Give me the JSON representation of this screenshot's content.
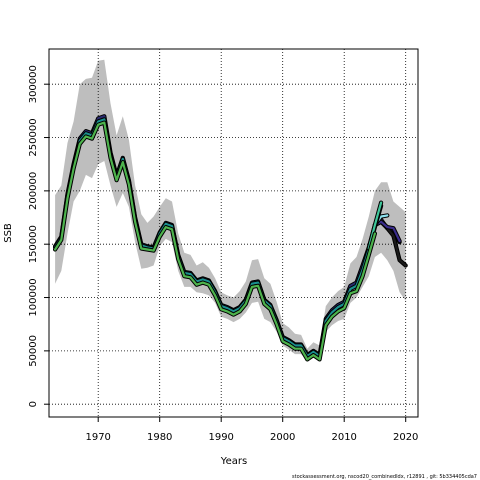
{
  "chart_data": {
    "type": "line",
    "title": "",
    "xlabel": "Years",
    "ylabel": "SSB",
    "xlim": [
      1962,
      2022
    ],
    "ylim": [
      -12000,
      333000
    ],
    "x_ticks": [
      1970,
      1980,
      1990,
      2000,
      2010,
      2020
    ],
    "y_ticks": [
      0,
      50000,
      100000,
      150000,
      200000,
      250000,
      300000
    ],
    "grid": true,
    "legend": "none",
    "colors": {
      "band": "#bebebe",
      "grid": "#000000",
      "outline": "#000000",
      "green": "#4db34d",
      "teal": "#1a8f8f",
      "darkblue": "#2a2a6e",
      "purple": "#3b2d8c",
      "black": "#1a1a1a",
      "cyan": "#8fe3f0",
      "mint": "#3fc69a"
    },
    "band": {
      "x": [
        1963,
        1964,
        1965,
        1966,
        1967,
        1968,
        1969,
        1970,
        1971,
        1972,
        1973,
        1974,
        1975,
        1976,
        1977,
        1978,
        1979,
        1980,
        1981,
        1982,
        1983,
        1984,
        1985,
        1986,
        1987,
        1988,
        1989,
        1990,
        1991,
        1992,
        1993,
        1994,
        1995,
        1996,
        1997,
        1998,
        1999,
        2000,
        2001,
        2002,
        2003,
        2004,
        2005,
        2006,
        2007,
        2008,
        2009,
        2010,
        2011,
        2012,
        2013,
        2014,
        2015,
        2016,
        2017,
        2018,
        2019,
        2020
      ],
      "upper": [
        196000,
        205000,
        245000,
        265000,
        300000,
        305000,
        306000,
        322000,
        323000,
        282000,
        252000,
        270000,
        248000,
        205000,
        178000,
        170000,
        176000,
        185000,
        193000,
        190000,
        160000,
        142000,
        140000,
        130000,
        133000,
        128000,
        118000,
        105000,
        102000,
        100000,
        106000,
        115000,
        135000,
        136000,
        118000,
        113000,
        96000,
        76000,
        72000,
        66000,
        65000,
        52000,
        58000,
        55000,
        92000,
        100000,
        106000,
        110000,
        132000,
        138000,
        155000,
        176000,
        200000,
        208000,
        208000,
        190000,
        185000,
        180000
      ],
      "lower": [
        113000,
        125000,
        160000,
        190000,
        200000,
        215000,
        212000,
        225000,
        228000,
        205000,
        185000,
        198000,
        185000,
        152000,
        127000,
        128000,
        130000,
        148000,
        155000,
        152000,
        125000,
        110000,
        110000,
        105000,
        104000,
        102000,
        95000,
        82000,
        80000,
        77000,
        80000,
        86000,
        95000,
        96000,
        80000,
        77000,
        68000,
        55000,
        51000,
        47000,
        47000,
        41000,
        46000,
        44000,
        68000,
        74000,
        78000,
        80000,
        95000,
        100000,
        110000,
        120000,
        138000,
        142000,
        135000,
        125000,
        105000,
        97000
      ]
    },
    "series": [
      {
        "color_key": "darkblue",
        "x": [
          1963,
          1964,
          1965,
          1966,
          1967,
          1968,
          1969,
          1970,
          1971,
          1972,
          1973,
          1974,
          1975,
          1976,
          1977,
          1978,
          1979,
          1980,
          1981,
          1982,
          1983,
          1984,
          1985,
          1986,
          1987,
          1988,
          1989,
          1990,
          1991,
          1992,
          1993,
          1994,
          1995,
          1996,
          1997,
          1998,
          1999,
          2000,
          2001,
          2002,
          2003,
          2004,
          2005,
          2006,
          2007,
          2008,
          2009,
          2010,
          2011,
          2012,
          2013,
          2014,
          2015,
          2016,
          2017,
          2018,
          2019
        ],
        "y": [
          148000,
          157000,
          197000,
          225000,
          249000,
          256000,
          254000,
          268000,
          270000,
          236000,
          214000,
          231000,
          210000,
          175000,
          150000,
          148000,
          147000,
          161000,
          170000,
          168000,
          140000,
          124000,
          123000,
          116000,
          118000,
          116000,
          106000,
          93000,
          91000,
          88000,
          91000,
          98000,
          114000,
          115000,
          98000,
          93000,
          79000,
          63000,
          60000,
          56000,
          56000,
          46000,
          50000,
          46000,
          80000,
          88000,
          93000,
          96000,
          111000,
          114000,
          130000,
          147000,
          168000,
          173000,
          165000,
          163000,
          152000
        ]
      },
      {
        "color_key": "black",
        "x": [
          2015,
          2016,
          2017,
          2018,
          2019,
          2020
        ],
        "y": [
          168000,
          171000,
          165000,
          158000,
          135000,
          130000
        ]
      },
      {
        "color_key": "purple",
        "x": [
          2015,
          2016,
          2017,
          2018,
          2019
        ],
        "y": [
          168000,
          171000,
          166000,
          165000,
          153000
        ]
      },
      {
        "color_key": "cyan",
        "x": [
          2015,
          2016,
          2017
        ],
        "y": [
          168000,
          176000,
          177000
        ]
      },
      {
        "color_key": "teal",
        "x": [
          1963,
          1964,
          1965,
          1966,
          1967,
          1968,
          1969,
          1970,
          1971,
          1972,
          1973,
          1974,
          1975,
          1976,
          1977,
          1978,
          1979,
          1980,
          1981,
          1982,
          1983,
          1984,
          1985,
          1986,
          1987,
          1988,
          1989,
          1990,
          1991,
          1992,
          1993,
          1994,
          1995,
          1996,
          1997,
          1998,
          1999,
          2000,
          2001,
          2002,
          2003,
          2004,
          2005,
          2006,
          2007,
          2008,
          2009,
          2010,
          2011,
          2012,
          2013,
          2014,
          2015,
          2016
        ],
        "y": [
          147000,
          156000,
          196000,
          223000,
          247000,
          254000,
          252000,
          265000,
          267000,
          234000,
          213000,
          230000,
          209000,
          174000,
          149000,
          147000,
          146000,
          160000,
          169000,
          167000,
          139000,
          123000,
          122000,
          115000,
          117000,
          115000,
          105000,
          92000,
          90000,
          87000,
          90000,
          97000,
          113000,
          114000,
          97000,
          92000,
          78000,
          62000,
          59000,
          55000,
          55000,
          45000,
          49000,
          45000,
          78000,
          86000,
          91000,
          94000,
          108000,
          111000,
          126000,
          145000,
          166000,
          186000
        ]
      },
      {
        "color_key": "mint",
        "x": [
          2014,
          2015,
          2016
        ],
        "y": [
          146000,
          168000,
          189000
        ]
      },
      {
        "color_key": "green",
        "x": [
          1963,
          1964,
          1965,
          1966,
          1967,
          1968,
          1969,
          1970,
          1971,
          1972,
          1973,
          1974,
          1975,
          1976,
          1977,
          1978,
          1979,
          1980,
          1981,
          1982,
          1983,
          1984,
          1985,
          1986,
          1987,
          1988,
          1989,
          1990,
          1991,
          1992,
          1993,
          1994,
          1995,
          1996,
          1997,
          1998,
          1999,
          2000,
          2001,
          2002,
          2003,
          2004,
          2005,
          2006,
          2007,
          2008,
          2009,
          2010,
          2011,
          2012,
          2013,
          2014,
          2015
        ],
        "y": [
          145000,
          154000,
          193000,
          221000,
          244000,
          251000,
          249000,
          262000,
          264000,
          231000,
          210000,
          227000,
          206000,
          171000,
          146000,
          145000,
          144000,
          157000,
          166000,
          164000,
          136000,
          120000,
          119000,
          112000,
          114000,
          112000,
          102000,
          89000,
          87000,
          84000,
          87000,
          94000,
          110000,
          111000,
          94000,
          89000,
          75000,
          59000,
          56000,
          52000,
          52000,
          42000,
          46000,
          42000,
          74000,
          82000,
          87000,
          90000,
          104000,
          106000,
          120000,
          140000,
          160000
        ]
      }
    ]
  },
  "footer": "stockassessment.org,  nscod20_combinedIdx,  r12891  ,  git: 5b334405cda7"
}
